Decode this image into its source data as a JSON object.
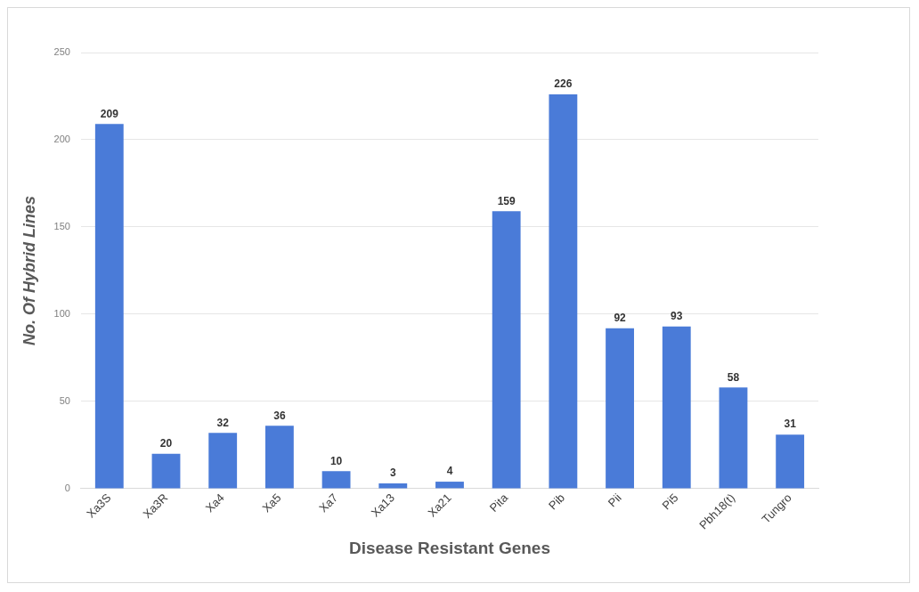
{
  "chart_data": {
    "type": "bar",
    "xlabel": "Disease Resistant Genes",
    "ylabel": "No. Of Hybrid Lines",
    "categories": [
      "Xa3S",
      "Xa3R",
      "Xa4",
      "Xa5",
      "Xa7",
      "Xa13",
      "Xa21",
      "Pita",
      "Pib",
      "Pii",
      "Pi5",
      "Pbh18(t)",
      "Tungro"
    ],
    "values": [
      209,
      20,
      32,
      36,
      10,
      3,
      4,
      159,
      226,
      92,
      93,
      58,
      31
    ],
    "color": "#4a7bd8",
    "ylim": [
      0,
      250
    ],
    "yticks": [
      0,
      50,
      100,
      150,
      200,
      250
    ],
    "grid": "y",
    "data_labels": true
  }
}
